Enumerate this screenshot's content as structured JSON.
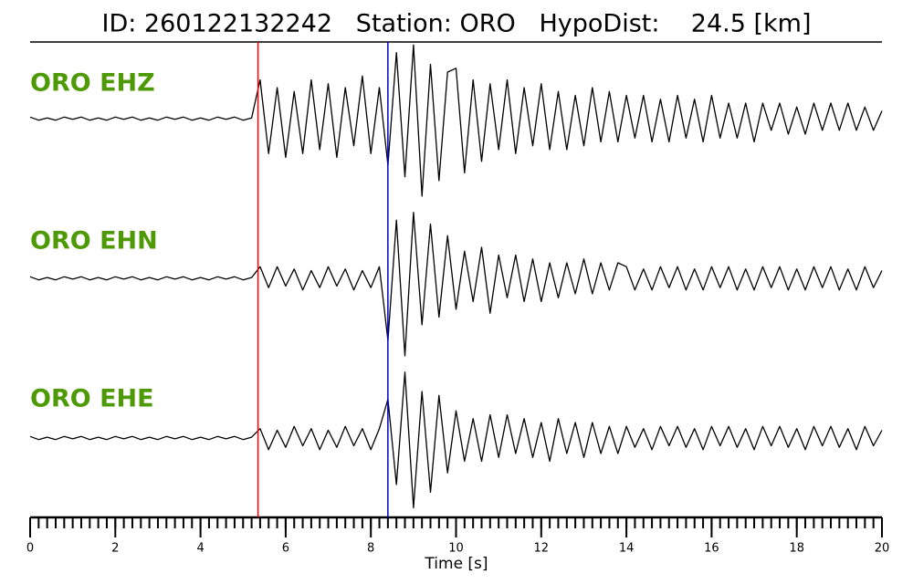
{
  "chart_data": {
    "type": "line",
    "title": "ID: 260122132242   Station: ORO   HypoDist:    24.5 [km]",
    "xlabel": "Time [s]",
    "xlim": [
      0,
      20
    ],
    "xticks": [
      0,
      2,
      4,
      6,
      8,
      10,
      12,
      14,
      16,
      18,
      20
    ],
    "ylim": [
      -1,
      1
    ],
    "x": [
      0,
      0.2,
      0.4,
      0.6,
      0.8,
      1,
      1.2,
      1.4,
      1.6,
      1.8,
      2,
      2.2,
      2.4,
      2.6,
      2.8,
      3,
      3.2,
      3.4,
      3.6,
      3.8,
      4,
      4.2,
      4.4,
      4.6,
      4.8,
      5,
      5.2,
      5.4,
      5.6,
      5.8,
      6,
      6.2,
      6.4,
      6.6,
      6.8,
      7,
      7.2,
      7.4,
      7.6,
      7.8,
      8,
      8.2,
      8.4,
      8.6,
      8.8,
      9,
      9.2,
      9.4,
      9.6,
      9.8,
      10,
      10.2,
      10.4,
      10.6,
      10.8,
      11,
      11.2,
      11.4,
      11.6,
      11.8,
      12,
      12.2,
      12.4,
      12.6,
      12.8,
      13,
      13.2,
      13.4,
      13.6,
      13.8,
      14,
      14.2,
      14.4,
      14.6,
      14.8,
      15,
      15.2,
      15.4,
      15.6,
      15.8,
      16,
      16.2,
      16.4,
      16.6,
      16.8,
      17,
      17.2,
      17.4,
      17.6,
      17.8,
      18,
      18.2,
      18.4,
      18.6,
      18.8,
      19,
      19.2,
      19.4,
      19.6,
      19.8,
      20
    ],
    "series": [
      {
        "name": "ORO EHZ",
        "label_color": "#4e9a06",
        "color": "#000000",
        "values": [
          0.02,
          -0.02,
          0.01,
          -0.02,
          0.02,
          -0.01,
          0.02,
          -0.02,
          0.01,
          -0.02,
          0.02,
          -0.01,
          0.02,
          -0.02,
          0.01,
          -0.02,
          0.02,
          -0.01,
          0.02,
          -0.02,
          0.01,
          -0.02,
          0.02,
          -0.01,
          0.02,
          -0.02,
          0.01,
          0.5,
          -0.45,
          0.4,
          -0.5,
          0.35,
          -0.45,
          0.5,
          -0.4,
          0.45,
          -0.5,
          0.4,
          -0.35,
          0.55,
          -0.45,
          0.4,
          -0.6,
          0.85,
          -0.75,
          0.95,
          -1.0,
          0.7,
          -0.8,
          0.6,
          0.65,
          -0.7,
          0.5,
          -0.55,
          0.45,
          -0.4,
          0.5,
          -0.45,
          0.4,
          -0.35,
          0.45,
          -0.4,
          0.35,
          -0.4,
          0.3,
          -0.35,
          0.4,
          -0.3,
          0.35,
          -0.3,
          0.3,
          -0.25,
          0.3,
          -0.3,
          0.25,
          -0.3,
          0.3,
          -0.25,
          0.25,
          -0.3,
          0.3,
          -0.25,
          0.2,
          -0.25,
          0.2,
          -0.3,
          0.2,
          -0.15,
          0.2,
          -0.2,
          0.15,
          -0.2,
          0.2,
          -0.15,
          0.2,
          -0.15,
          0.2,
          -0.15,
          0.15,
          -0.15,
          0.1
        ]
      },
      {
        "name": "ORO EHN",
        "label_color": "#4e9a06",
        "color": "#000000",
        "values": [
          0.02,
          -0.02,
          0.01,
          -0.02,
          0.02,
          -0.01,
          0.02,
          -0.02,
          0.01,
          -0.02,
          0.02,
          -0.01,
          0.02,
          -0.02,
          0.01,
          -0.02,
          0.02,
          -0.01,
          0.02,
          -0.02,
          0.01,
          -0.02,
          0.02,
          -0.01,
          0.02,
          -0.02,
          0.01,
          0.15,
          -0.12,
          0.15,
          -0.1,
          0.12,
          -0.15,
          0.1,
          -0.12,
          0.15,
          -0.1,
          0.12,
          -0.15,
          0.1,
          -0.12,
          0.15,
          -0.8,
          0.75,
          -1.0,
          0.85,
          -0.6,
          0.7,
          -0.5,
          0.55,
          -0.4,
          0.35,
          -0.3,
          0.4,
          -0.45,
          0.3,
          -0.25,
          0.3,
          -0.3,
          0.25,
          -0.3,
          0.2,
          -0.25,
          0.2,
          -0.2,
          0.25,
          -0.2,
          0.2,
          -0.15,
          0.2,
          0.15,
          -0.15,
          0.12,
          -0.15,
          0.15,
          -0.12,
          0.15,
          -0.15,
          0.12,
          -0.15,
          0.15,
          -0.12,
          0.15,
          -0.15,
          0.12,
          -0.15,
          0.15,
          -0.12,
          0.15,
          -0.15,
          0.12,
          -0.15,
          0.15,
          -0.12,
          0.15,
          -0.15,
          0.12,
          -0.15,
          0.15,
          -0.12,
          0.1
        ]
      },
      {
        "name": "ORO EHE",
        "label_color": "#4e9a06",
        "color": "#000000",
        "values": [
          0.02,
          -0.02,
          0.01,
          -0.02,
          0.02,
          -0.01,
          0.02,
          -0.02,
          0.01,
          -0.02,
          0.02,
          -0.01,
          0.02,
          -0.02,
          0.01,
          -0.02,
          0.02,
          -0.01,
          0.02,
          -0.02,
          0.01,
          -0.02,
          0.02,
          -0.01,
          0.02,
          -0.02,
          0.01,
          0.12,
          -0.15,
          0.1,
          -0.12,
          0.15,
          -0.1,
          0.12,
          -0.15,
          0.1,
          -0.12,
          0.15,
          -0.1,
          0.12,
          -0.15,
          0.12,
          0.5,
          -0.6,
          0.85,
          -0.9,
          0.6,
          -0.7,
          0.55,
          -0.45,
          0.35,
          -0.3,
          0.25,
          -0.3,
          0.3,
          -0.25,
          0.3,
          -0.2,
          0.25,
          -0.25,
          0.2,
          -0.3,
          0.25,
          -0.2,
          0.2,
          -0.25,
          0.2,
          -0.2,
          0.15,
          -0.2,
          0.15,
          -0.12,
          0.12,
          -0.15,
          0.15,
          -0.1,
          0.15,
          -0.12,
          0.12,
          -0.15,
          0.15,
          -0.1,
          0.15,
          -0.12,
          0.12,
          -0.15,
          0.15,
          -0.1,
          0.15,
          -0.12,
          0.12,
          -0.15,
          0.15,
          -0.1,
          0.15,
          -0.12,
          0.12,
          -0.15,
          0.15,
          -0.1,
          0.1
        ]
      }
    ],
    "picks": [
      {
        "x": 5.35,
        "color": "#ff0000"
      },
      {
        "x": 8.4,
        "color": "#0000cc"
      }
    ]
  }
}
